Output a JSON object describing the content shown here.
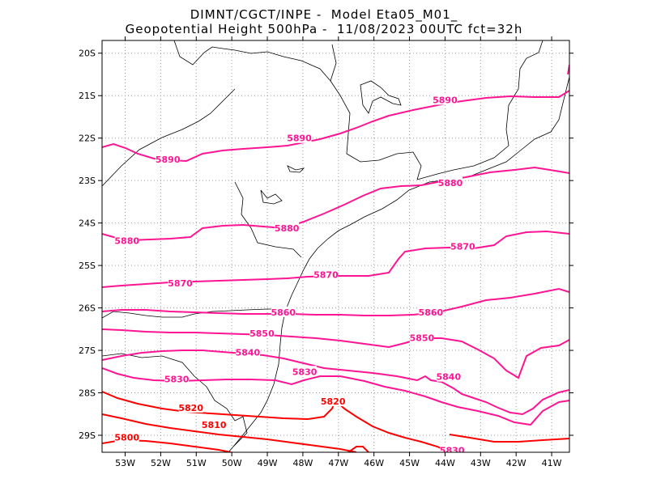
{
  "header": {
    "title_line1": "DIMNT/CGCT/INPE -  Model Eta05_M01_",
    "title_line2": "Geopotential Height 500hPa -  11/08/2023 00UTC fct=32h"
  },
  "axes": {
    "lat_ticks": [
      "20S",
      "21S",
      "22S",
      "23S",
      "24S",
      "25S",
      "26S",
      "27S",
      "28S",
      "29S"
    ],
    "lon_ticks": [
      "53W",
      "52W",
      "51W",
      "50W",
      "49W",
      "48W",
      "47W",
      "46W",
      "45W",
      "44W",
      "43W",
      "42W",
      "41W"
    ],
    "lon_range": [
      -53.65,
      -40.5
    ],
    "lat_range": [
      -29.4,
      -19.7
    ],
    "grid": true
  },
  "colors": {
    "contour_high": "#ff1493",
    "contour_low": "#ff0000",
    "coastline": "#000000",
    "grid": "#9a9a9a"
  },
  "contour_labels": [
    {
      "text": "5890",
      "lon": -44.0,
      "lat": -21.1
    },
    {
      "text": "5890",
      "lon": -48.1,
      "lat": -22.0
    },
    {
      "text": "5890",
      "lon": -51.8,
      "lat": -22.5
    },
    {
      "text": "5880",
      "lon": -43.85,
      "lat": -23.05
    },
    {
      "text": "5880",
      "lon": -48.45,
      "lat": -24.12
    },
    {
      "text": "5880",
      "lon": -52.95,
      "lat": -24.42
    },
    {
      "text": "5870",
      "lon": -43.5,
      "lat": -24.55
    },
    {
      "text": "5870",
      "lon": -47.35,
      "lat": -25.22
    },
    {
      "text": "5870",
      "lon": -51.45,
      "lat": -25.42
    },
    {
      "text": "5860",
      "lon": -44.4,
      "lat": -26.1
    },
    {
      "text": "5860",
      "lon": -48.55,
      "lat": -26.1
    },
    {
      "text": "5850",
      "lon": -44.65,
      "lat": -26.7
    },
    {
      "text": "5850",
      "lon": -49.15,
      "lat": -26.6
    },
    {
      "text": "5840",
      "lon": -43.9,
      "lat": -27.62
    },
    {
      "text": "5840",
      "lon": -49.55,
      "lat": -27.05
    },
    {
      "text": "5830",
      "lon": -47.95,
      "lat": -27.5
    },
    {
      "text": "5830",
      "lon": -51.55,
      "lat": -27.68
    },
    {
      "text": "5830",
      "lon": -43.8,
      "lat": -29.35
    },
    {
      "text": "5820",
      "lon": -47.15,
      "lat": -28.2
    },
    {
      "text": "5820",
      "lon": -51.15,
      "lat": -28.35
    },
    {
      "text": "5810",
      "lon": -50.5,
      "lat": -28.75
    },
    {
      "text": "5800",
      "lon": -52.95,
      "lat": -29.05
    }
  ]
}
